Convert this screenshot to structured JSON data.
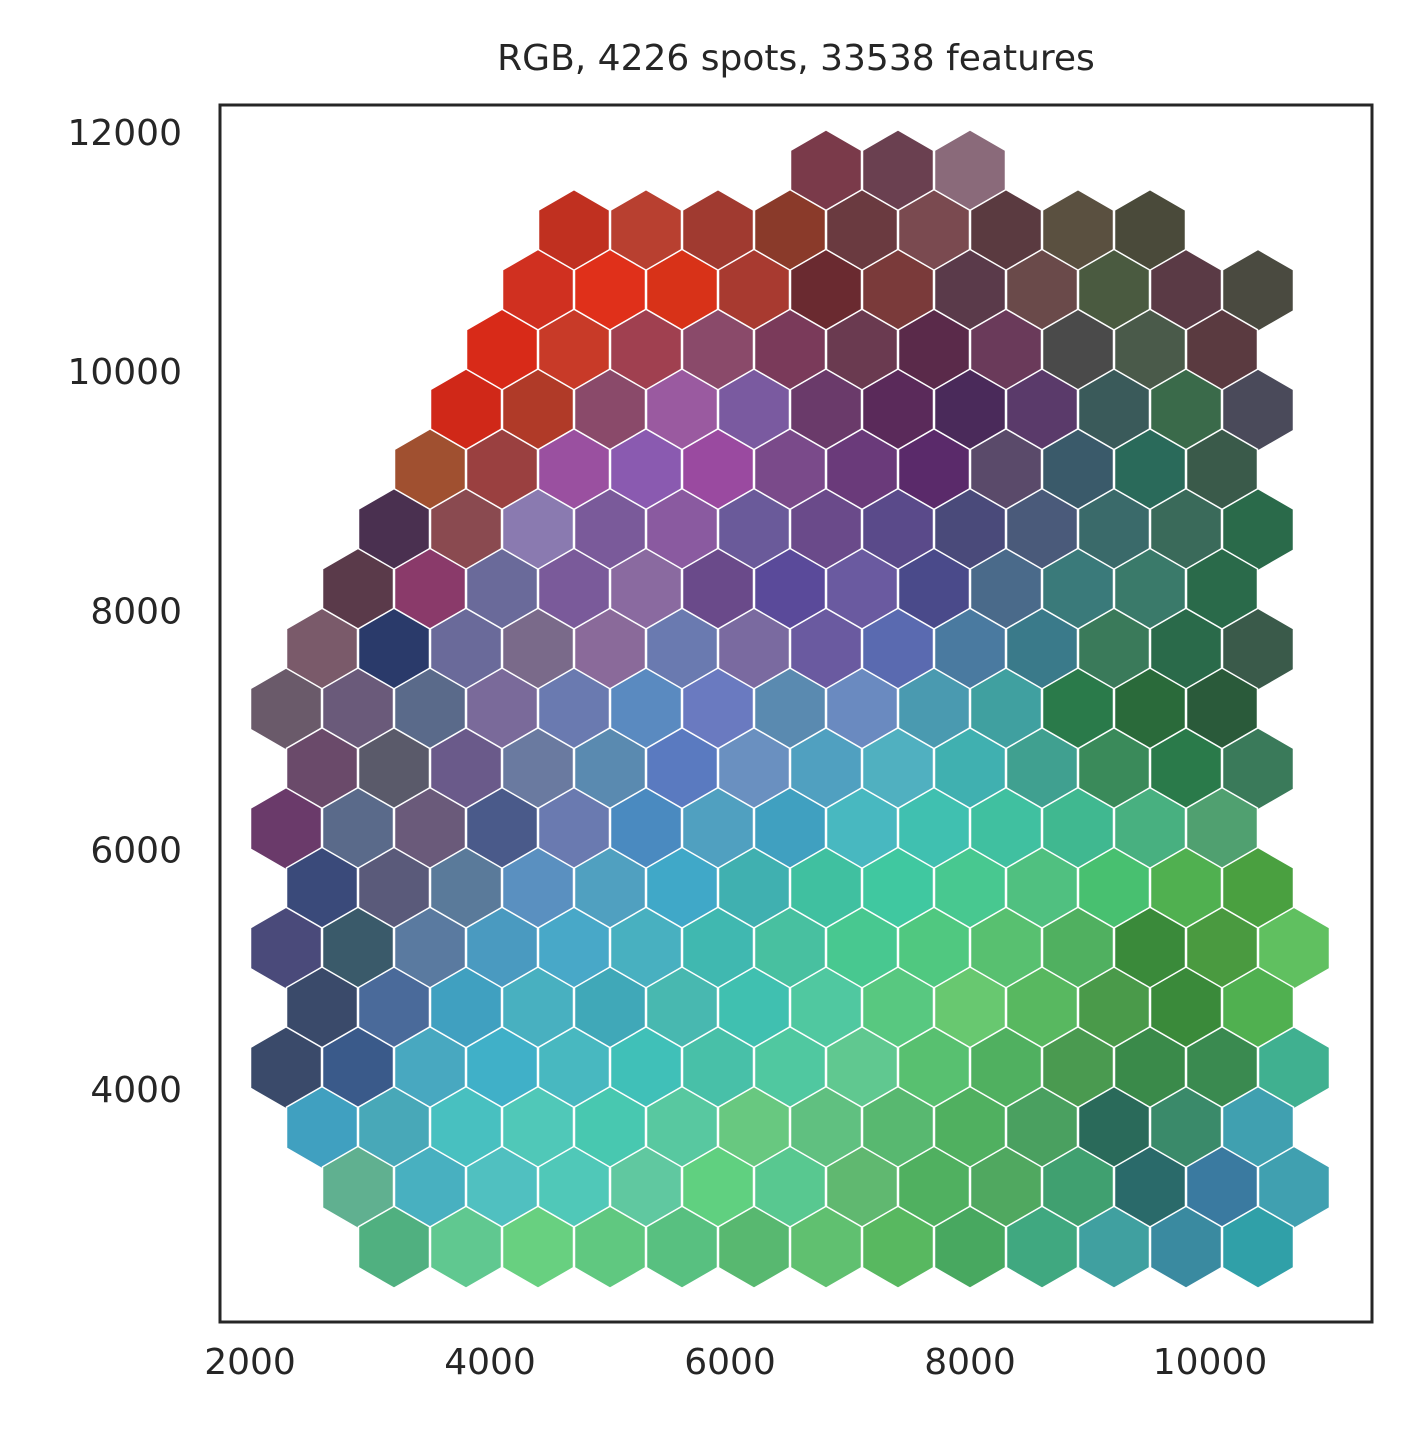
{
  "chart_data": {
    "type": "scatter",
    "title": "RGB, 4226 spots, 33538 features",
    "xlim": [
      1750,
      11350
    ],
    "ylim": [
      2075,
      12250
    ],
    "xticks": [
      2000,
      4000,
      6000,
      8000,
      10000
    ],
    "yticks": [
      4000,
      6000,
      8000,
      10000,
      12000
    ],
    "x": [
      6800,
      7400,
      8000,
      4700,
      5300,
      5900,
      6500,
      7100,
      7700,
      8300,
      8900,
      9500,
      4400,
      5000,
      5600,
      6200,
      6800,
      7400,
      8000,
      8600,
      9200,
      9800,
      10400,
      4100,
      4700,
      5300,
      5900,
      6500,
      7100,
      7700,
      8300,
      8900,
      9500,
      10100,
      3800,
      4400,
      5000,
      5600,
      6200,
      6800,
      7400,
      8000,
      8600,
      9200,
      9800,
      10400,
      3500,
      4100,
      4700,
      5300,
      5900,
      6500,
      7100,
      7700,
      8300,
      8900,
      9500,
      10100,
      3200,
      3800,
      4400,
      5000,
      5600,
      6200,
      6800,
      7400,
      8000,
      8600,
      9200,
      9800,
      10400,
      2900,
      3500,
      4100,
      4700,
      5300,
      5900,
      6500,
      7100,
      7700,
      8300,
      8900,
      9500,
      10100,
      2600,
      3200,
      3800,
      4400,
      5000,
      5600,
      6200,
      6800,
      7400,
      8000,
      8600,
      9200,
      9800,
      10400,
      2300,
      2900,
      3500,
      4100,
      4700,
      5300,
      5900,
      6500,
      7100,
      7700,
      8300,
      8900,
      9500,
      10100,
      2600,
      3200,
      3800,
      4400,
      5000,
      5600,
      6200,
      6800,
      7400,
      8000,
      8600,
      9200,
      9800,
      10400,
      2300,
      2900,
      3500,
      4100,
      4700,
      5300,
      5900,
      6500,
      7100,
      7700,
      8300,
      8900,
      9500,
      10100,
      2600,
      3200,
      3800,
      4400,
      5000,
      5600,
      6200,
      6800,
      7400,
      8000,
      8600,
      9200,
      9800,
      10400,
      2300,
      2900,
      3500,
      4100,
      4700,
      5300,
      5900,
      6500,
      7100,
      7700,
      8300,
      8900,
      9500,
      10100,
      10700,
      2600,
      3200,
      3800,
      4400,
      5000,
      5600,
      6200,
      6800,
      7400,
      8000,
      8600,
      9200,
      9800,
      10400,
      2300,
      2900,
      3500,
      4100,
      4700,
      5300,
      5900,
      6500,
      7100,
      7700,
      8300,
      8900,
      9500,
      10100,
      10700,
      2600,
      3200,
      3800,
      4400,
      5000,
      5600,
      6200,
      6800,
      7400,
      8000,
      8600,
      9200,
      9800,
      10400,
      2900,
      3500,
      4100,
      4700,
      5300,
      5900,
      6500,
      7100,
      7700,
      8300,
      8900,
      9500,
      10100,
      10700,
      3200,
      3800,
      4400,
      5000,
      5600,
      6200,
      6800,
      7400,
      8000,
      8600,
      9200,
      9800,
      10400
    ],
    "y": [
      11700,
      11700,
      11700,
      11200,
      11200,
      11200,
      11200,
      11200,
      11200,
      11200,
      11200,
      11200,
      10700,
      10700,
      10700,
      10700,
      10700,
      10700,
      10700,
      10700,
      10700,
      10700,
      10700,
      10200,
      10200,
      10200,
      10200,
      10200,
      10200,
      10200,
      10200,
      10200,
      10200,
      10200,
      9700,
      9700,
      9700,
      9700,
      9700,
      9700,
      9700,
      9700,
      9700,
      9700,
      9700,
      9700,
      9200,
      9200,
      9200,
      9200,
      9200,
      9200,
      9200,
      9200,
      9200,
      9200,
      9200,
      9200,
      8700,
      8700,
      8700,
      8700,
      8700,
      8700,
      8700,
      8700,
      8700,
      8700,
      8700,
      8700,
      8700,
      8200,
      8200,
      8200,
      8200,
      8200,
      8200,
      8200,
      8200,
      8200,
      8200,
      8200,
      8200,
      8200,
      7700,
      7700,
      7700,
      7700,
      7700,
      7700,
      7700,
      7700,
      7700,
      7700,
      7700,
      7700,
      7700,
      7700,
      7200,
      7200,
      7200,
      7200,
      7200,
      7200,
      7200,
      7200,
      7200,
      7200,
      7200,
      7200,
      7200,
      7200,
      6700,
      6700,
      6700,
      6700,
      6700,
      6700,
      6700,
      6700,
      6700,
      6700,
      6700,
      6700,
      6700,
      6700,
      6200,
      6200,
      6200,
      6200,
      6200,
      6200,
      6200,
      6200,
      6200,
      6200,
      6200,
      6200,
      6200,
      6200,
      5700,
      5700,
      5700,
      5700,
      5700,
      5700,
      5700,
      5700,
      5700,
      5700,
      5700,
      5700,
      5700,
      5700,
      5200,
      5200,
      5200,
      5200,
      5200,
      5200,
      5200,
      5200,
      5200,
      5200,
      5200,
      5200,
      5200,
      5200,
      5200,
      4700,
      4700,
      4700,
      4700,
      4700,
      4700,
      4700,
      4700,
      4700,
      4700,
      4700,
      4700,
      4700,
      4700,
      4200,
      4200,
      4200,
      4200,
      4200,
      4200,
      4200,
      4200,
      4200,
      4200,
      4200,
      4200,
      4200,
      4200,
      4200,
      3700,
      3700,
      3700,
      3700,
      3700,
      3700,
      3700,
      3700,
      3700,
      3700,
      3700,
      3700,
      3700,
      3700,
      3200,
      3200,
      3200,
      3200,
      3200,
      3200,
      3200,
      3200,
      3200,
      3200,
      3200,
      3200,
      3200,
      3200,
      2700,
      2700,
      2700,
      2700,
      2700,
      2700,
      2700,
      2700,
      2700,
      2700,
      2700,
      2700,
      2700
    ],
    "colors": [
      "#7a3a4a",
      "#6a4050",
      "#8a6a7a",
      "#c03020",
      "#b84030",
      "#a03a30",
      "#8a3a2a",
      "#6a3a40",
      "#7a4a50",
      "#5a3a40",
      "#5a5040",
      "#4a4a3a",
      "#d03020",
      "#e0301a",
      "#d83218",
      "#a83a30",
      "#6a2a30",
      "#7a3a3a",
      "#5a3a4a",
      "#6a4a4a",
      "#4a5a40",
      "#5a3a45",
      "#4a4a40",
      "#d82a18",
      "#c83a28",
      "#a04050",
      "#8a4a6a",
      "#7a3a5a",
      "#6a3a50",
      "#5a2a4a",
      "#6a3a5a",
      "#4a4a4a",
      "#4a5a4a",
      "#5a3a40",
      "#d02818",
      "#b03a28",
      "#8a4a6a",
      "#9a5aa0",
      "#7a5aa0",
      "#6a3a6a",
      "#5a2a5a",
      "#4a2a5a",
      "#5a3a6a",
      "#3a5a5a",
      "#3a6a4a",
      "#4a4a5a",
      "#a05030",
      "#9a4040",
      "#9a50a0",
      "#8a5ab0",
      "#9a4aa0",
      "#7a4a8a",
      "#6a3a7a",
      "#5a2a6a",
      "#5a4a6a",
      "#3a5a6a",
      "#2a6a5a",
      "#3a5a4a",
      "#4a3050",
      "#8a4a50",
      "#8a7ab0",
      "#7a5a9a",
      "#8a5aa0",
      "#6a5a9a",
      "#6a4a8a",
      "#5a4a8a",
      "#4a4a7a",
      "#4a5a7a",
      "#3a6a6a",
      "#3a6a5a",
      "#2a6a4a",
      "#5a3a4a",
      "#8a3a6a",
      "#6a6a9a",
      "#7a5a9a",
      "#8a6aa0",
      "#6a4a8a",
      "#5a4a9a",
      "#6a5aa0",
      "#4a4a8a",
      "#4a6a8a",
      "#3a7a7a",
      "#3a7a6a",
      "#2a6a4a",
      "#7a5a6a",
      "#2a3a6a",
      "#6a6a9a",
      "#7a6a8a",
      "#8a6a9a",
      "#6a7ab0",
      "#7a6aa0",
      "#6a5aa0",
      "#5a6ab0",
      "#4a7aa0",
      "#3a7a8a",
      "#3a7a5a",
      "#2a6a4a",
      "#3a5a4a",
      "#6a5a6a",
      "#6a5a7a",
      "#5a6a8a",
      "#7a6a9a",
      "#6a7ab0",
      "#5a8ac0",
      "#6a7ac0",
      "#5a8ab0",
      "#6a8ac0",
      "#4a9ab0",
      "#40a0a0",
      "#2a7a4a",
      "#2a6a3a",
      "#2a5a3a",
      "#6a4a6a",
      "#5a5a6a",
      "#6a5a8a",
      "#6a7aa0",
      "#5a8ab0",
      "#5a7ac0",
      "#6a90c0",
      "#50a0c0",
      "#50b0c0",
      "#40b0b0",
      "#40a090",
      "#3a8a5a",
      "#2a7a4a",
      "#3a7a5a",
      "#6a3a6a",
      "#5a6a8a",
      "#6a5a7a",
      "#4a5a8a",
      "#6a7ab0",
      "#4a8ac0",
      "#50a0c0",
      "#40a0c0",
      "#48b8c0",
      "#40c0b0",
      "#40c0a0",
      "#40b890",
      "#48b080",
      "#50a070",
      "#3a4a7a",
      "#5a5a7a",
      "#5a7a9a",
      "#5a90c0",
      "#50a0c0",
      "#40a8c8",
      "#40b0b0",
      "#40c0a0",
      "#40c8a0",
      "#48c890",
      "#50c080",
      "#48c070",
      "#50b050",
      "#4aa040",
      "#4a4a7a",
      "#3a5a6a",
      "#5a7aa0",
      "#4a9ac0",
      "#48a8c8",
      "#48b0c0",
      "#40b8b0",
      "#48c0a0",
      "#48c890",
      "#50c880",
      "#58c070",
      "#50b060",
      "#3a8a3a",
      "#4a9a40",
      "#60c060",
      "#3a4a6a",
      "#4a6a9a",
      "#40a0c0",
      "#48b0c0",
      "#40a8b8",
      "#48b8b0",
      "#40c0b0",
      "#50c8a0",
      "#58c880",
      "#68c870",
      "#58b860",
      "#4a9a4a",
      "#3a8a3a",
      "#50b050",
      "#3a4a6a",
      "#3a5a8a",
      "#48a8c0",
      "#40b0c8",
      "#48b8c0",
      "#40c0b8",
      "#48c0a8",
      "#50c8a0",
      "#60c890",
      "#58c070",
      "#50b060",
      "#4a9a50",
      "#3a8a4a",
      "#3a8a50",
      "#40b090",
      "#40a0c0",
      "#48a8b8",
      "#48c0c0",
      "#50c8b8",
      "#48c8b0",
      "#58c8a0",
      "#68c880",
      "#60c080",
      "#58b870",
      "#50b060",
      "#4aa060",
      "#2a6a5a",
      "#3a8a6a",
      "#40a0b0",
      "#60b090",
      "#48b0c0",
      "#50c0c0",
      "#50c8b8",
      "#60c8a0",
      "#60d080",
      "#58c890",
      "#60b870",
      "#50b060",
      "#50a860",
      "#40a070",
      "#2a6a6a",
      "#3a7aa0",
      "#40a0b0",
      "#50b080",
      "#60c890",
      "#68d080",
      "#60c880",
      "#58c080",
      "#58b870",
      "#60c070",
      "#58b860",
      "#48a860",
      "#40a880",
      "#40a0a0",
      "#3a8aa0",
      "#30a0a8"
    ]
  }
}
